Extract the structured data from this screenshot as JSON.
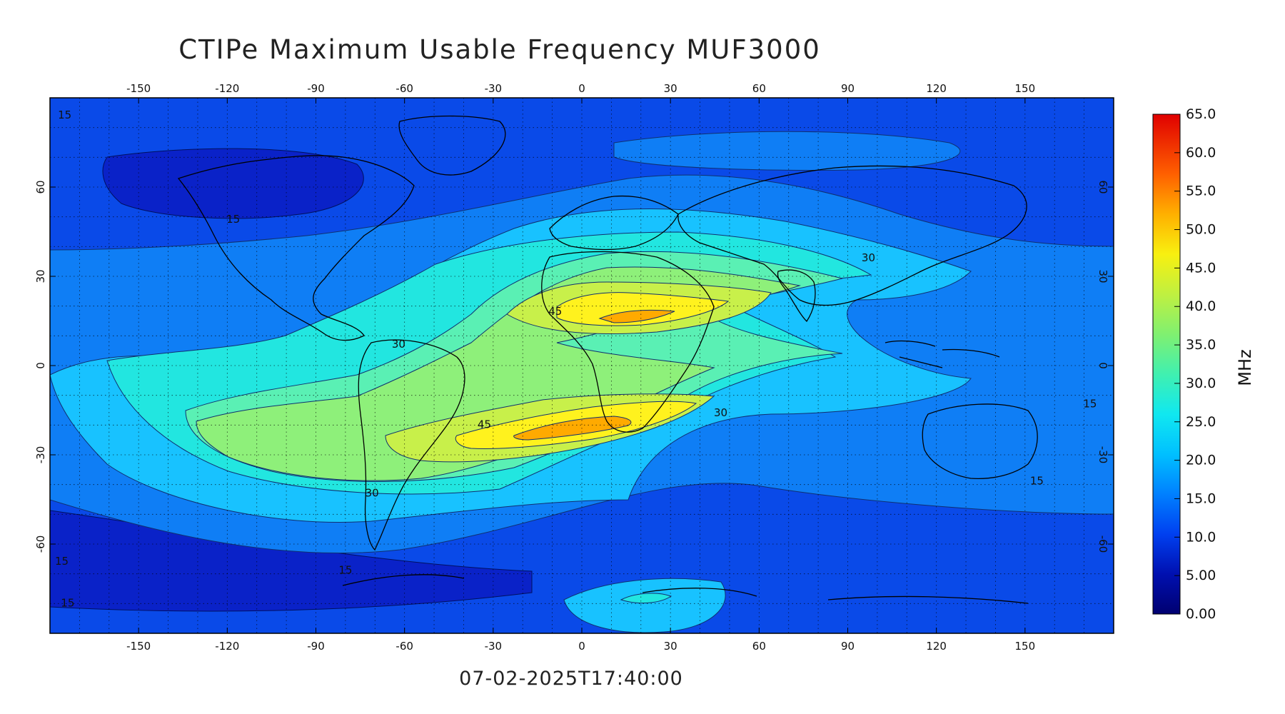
{
  "title": "CTIPe Maximum Usable Frequency MUF3000",
  "timestamp": "07-02-2025T17:40:00",
  "map": {
    "lon_ticks": [
      -150,
      -120,
      -90,
      -60,
      -30,
      0,
      30,
      60,
      90,
      120,
      150
    ],
    "lat_ticks": [
      60,
      30,
      0,
      -30,
      -60
    ],
    "lon_range": [
      -180,
      180
    ],
    "lat_range": [
      -90,
      90
    ],
    "grid": "dotted",
    "contour_labels": [
      {
        "text": "15",
        "lon": -175,
        "lat": 83
      },
      {
        "text": "15",
        "lon": -118,
        "lat": 48
      },
      {
        "text": "30",
        "lon": 97,
        "lat": 35
      },
      {
        "text": "45",
        "lon": -9,
        "lat": 17
      },
      {
        "text": "30",
        "lon": -62,
        "lat": 6
      },
      {
        "text": "45",
        "lon": -33,
        "lat": -21
      },
      {
        "text": "30",
        "lon": 47,
        "lat": -17
      },
      {
        "text": "15",
        "lon": 154,
        "lat": -40
      },
      {
        "text": "15",
        "lon": 172,
        "lat": -14
      },
      {
        "text": "30",
        "lon": -71,
        "lat": -44
      },
      {
        "text": "15",
        "lon": -80,
        "lat": -70
      },
      {
        "text": "15",
        "lon": -174,
        "lat": -81
      },
      {
        "text": "15",
        "lon": -176,
        "lat": -67
      }
    ]
  },
  "colorbar": {
    "label": "MHz",
    "min": 0,
    "max": 65,
    "ticks": [
      "65.0",
      "60.0",
      "55.0",
      "50.0",
      "45.0",
      "40.0",
      "35.0",
      "30.0",
      "25.0",
      "20.0",
      "15.0",
      "10.0",
      "5.00",
      "0.00"
    ],
    "colors": [
      "#000080",
      "#0020d8",
      "#0060ff",
      "#00b0ff",
      "#10e0e8",
      "#50f0a0",
      "#a0f060",
      "#e8f020",
      "#ffc000",
      "#ff7000",
      "#ff2000",
      "#d00000"
    ]
  },
  "contour_levels": [
    {
      "level": 10,
      "color": "#1444e0"
    },
    {
      "level": 15,
      "color": "#0f7ef5"
    },
    {
      "level": 20,
      "color": "#18c2ff"
    },
    {
      "level": 25,
      "color": "#22e6e0"
    },
    {
      "level": 30,
      "color": "#5af0b4"
    },
    {
      "level": 35,
      "color": "#8ef07a"
    },
    {
      "level": 40,
      "color": "#c8f04a"
    },
    {
      "level": 45,
      "color": "#fff21e"
    },
    {
      "level": 50,
      "color": "#ffaa00"
    }
  ]
}
